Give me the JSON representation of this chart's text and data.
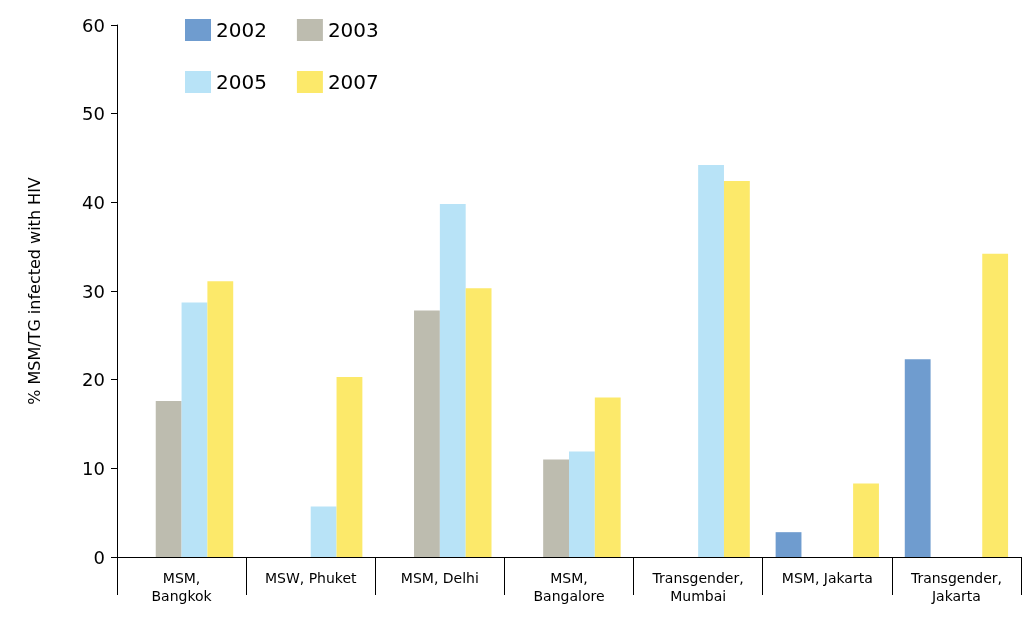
{
  "chart_data": {
    "type": "bar",
    "ylabel": "% MSM/TG infected with HIV",
    "categories": [
      "MSM,\nBangkok",
      "MSW, Phuket",
      "MSM, Delhi",
      "MSM,\nBangalore",
      "Transgender,\nMumbai",
      "MSM, Jakarta",
      "Transgender,\nJakarta"
    ],
    "series": [
      {
        "name": "2002",
        "color": "#6f9ccf",
        "values": [
          null,
          null,
          null,
          null,
          null,
          2.8,
          22.3
        ]
      },
      {
        "name": "2003",
        "color": "#bdbcaf",
        "values": [
          17.6,
          null,
          27.8,
          11.0,
          null,
          null,
          null
        ]
      },
      {
        "name": "2005",
        "color": "#b8e3f7",
        "values": [
          28.7,
          5.7,
          39.8,
          11.9,
          44.2,
          null,
          null
        ]
      },
      {
        "name": "2007",
        "color": "#fce96a",
        "values": [
          31.1,
          20.3,
          30.3,
          18.0,
          42.4,
          8.3,
          34.2
        ]
      }
    ],
    "ylim": [
      0,
      60
    ],
    "yticks": [
      0,
      10,
      20,
      30,
      40,
      50,
      60
    ],
    "grid": false,
    "legend": "top left"
  }
}
